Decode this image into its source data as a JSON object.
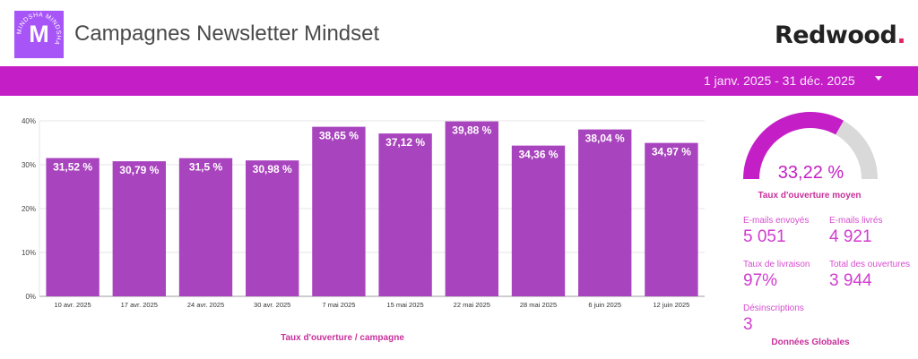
{
  "header": {
    "title": "Campagnes Newsletter Mindset",
    "logo_letter": "M",
    "logo_ring_text": "MINDSHA MINDSHA",
    "brand_name": "Redwood",
    "brand_dot": "."
  },
  "filter": {
    "date_range": "1 janv. 2025 - 31 déc. 2025"
  },
  "colors": {
    "accent": "#c41fc7",
    "bar": "#a844bd",
    "gauge_track": "#d9d9d9"
  },
  "chart_data": {
    "type": "bar",
    "categories": [
      "10 avr. 2025",
      "17 avr. 2025",
      "24 avr. 2025",
      "30 avr. 2025",
      "7 mai 2025",
      "15 mai 2025",
      "22 mai 2025",
      "28 mai 2025",
      "6 juin 2025",
      "12 juin 2025"
    ],
    "values": [
      31.52,
      30.79,
      31.5,
      30.98,
      38.65,
      37.12,
      39.88,
      34.36,
      38.04,
      34.97
    ],
    "data_labels": [
      "31,52 %",
      "30,79 %",
      "31,5 %",
      "30,98 %",
      "38,65 %",
      "37,12 %",
      "39,88 %",
      "34,36 %",
      "38,04 %",
      "34,97 %"
    ],
    "yticks": [
      0,
      10,
      20,
      30,
      40
    ],
    "ytick_labels": [
      "0%",
      "10%",
      "20%",
      "30%",
      "40%"
    ],
    "ylim": [
      0,
      40
    ],
    "grid": true,
    "caption": "Taux d'ouverture / campagne"
  },
  "gauge": {
    "value": 33.22,
    "max": 50,
    "value_label": "33,22 %",
    "label": "Taux d'ouverture moyen"
  },
  "kpis": [
    {
      "label": "E-mails envoyés",
      "value": "5 051"
    },
    {
      "label": "E-mails livrés",
      "value": "4 921"
    },
    {
      "label": "Taux de livraison",
      "value": "97%"
    },
    {
      "label": "Total des ouvertures",
      "value": "3 944"
    },
    {
      "label": "Désinscriptions",
      "value": "3"
    }
  ],
  "global_label": "Données Globales"
}
